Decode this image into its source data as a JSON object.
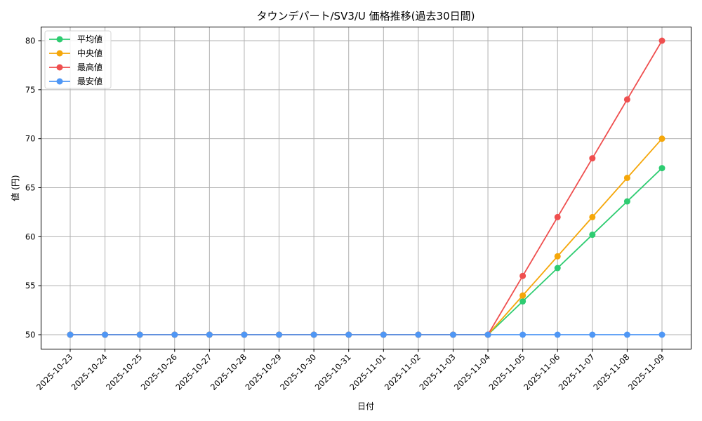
{
  "chart_data": {
    "type": "line",
    "title": "タウンデパート/SV3/U 価格推移(過去30日間)",
    "xlabel": "日付",
    "ylabel": "値 (円)",
    "ylim": [
      48.5,
      81.5
    ],
    "yticks": [
      50,
      55,
      60,
      65,
      70,
      75,
      80
    ],
    "grid": true,
    "legend_position": "upper left",
    "x": [
      "2025-10-23",
      "2025-10-24",
      "2025-10-25",
      "2025-10-26",
      "2025-10-27",
      "2025-10-28",
      "2025-10-29",
      "2025-10-30",
      "2025-10-31",
      "2025-11-01",
      "2025-11-02",
      "2025-11-03",
      "2025-11-04",
      "2025-11-05",
      "2025-11-06",
      "2025-11-07",
      "2025-11-08",
      "2025-11-09"
    ],
    "series": [
      {
        "name": "平均値",
        "color": "#2ecc71",
        "values": [
          50,
          50,
          50,
          50,
          50,
          50,
          50,
          50,
          50,
          50,
          50,
          50,
          50,
          53.4,
          56.8,
          60.2,
          63.6,
          67
        ]
      },
      {
        "name": "中央値",
        "color": "#f5a70a",
        "values": [
          50,
          50,
          50,
          50,
          50,
          50,
          50,
          50,
          50,
          50,
          50,
          50,
          50,
          54,
          58,
          62,
          66,
          70
        ]
      },
      {
        "name": "最高値",
        "color": "#ef4f4f",
        "values": [
          50,
          50,
          50,
          50,
          50,
          50,
          50,
          50,
          50,
          50,
          50,
          50,
          50,
          56,
          62,
          68,
          74,
          80
        ]
      },
      {
        "name": "最安値",
        "color": "#4f97f5",
        "values": [
          50,
          50,
          50,
          50,
          50,
          50,
          50,
          50,
          50,
          50,
          50,
          50,
          50,
          50,
          50,
          50,
          50,
          50
        ]
      }
    ]
  }
}
